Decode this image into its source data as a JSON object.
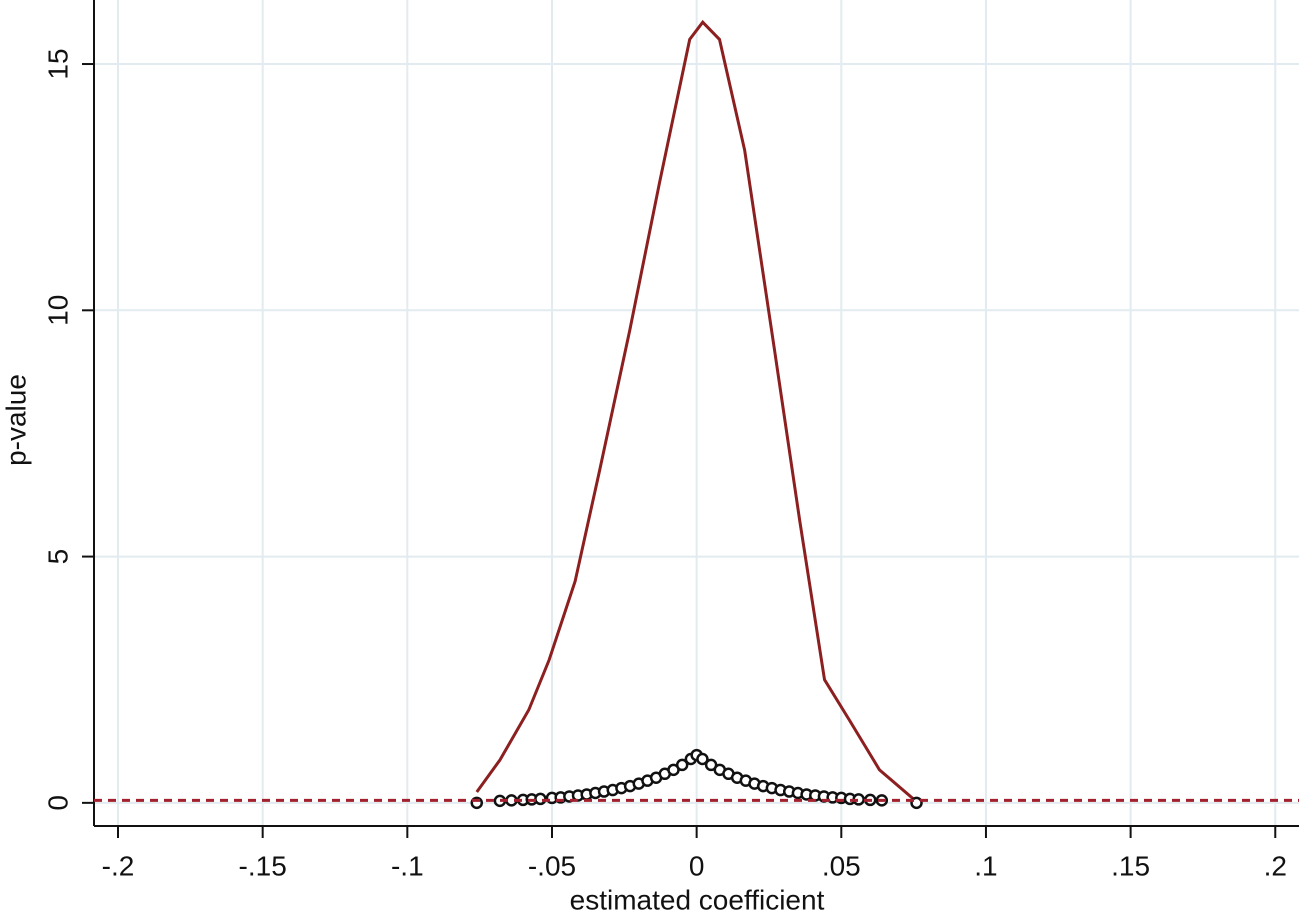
{
  "chart_data": {
    "type": "line",
    "x_label": "estimated  coefficient",
    "y_label": "p-value",
    "xlim": [
      -0.2083,
      0.2082
    ],
    "ylim": [
      -0.47,
      16.3
    ],
    "xticks": [
      {
        "value": -0.2,
        "label": "-.2"
      },
      {
        "value": -0.15,
        "label": "-.15"
      },
      {
        "value": -0.1,
        "label": "-.1"
      },
      {
        "value": -0.05,
        "label": "-.05"
      },
      0,
      {
        "value": 0.05,
        "label": ".05"
      },
      {
        "value": 0.1,
        "label": ".1"
      },
      {
        "value": 0.15,
        "label": ".15"
      },
      {
        "value": 0.2,
        "label": ".2"
      }
    ],
    "yticks": [
      0,
      5,
      10,
      15
    ],
    "grid": true,
    "reference_line": {
      "value": 0.05,
      "color": "#a3212e"
    },
    "series": [
      {
        "type": "line",
        "color": "#8c1f1f",
        "x": [
          -0.076,
          -0.068,
          -0.058,
          -0.051,
          -0.042,
          -0.0335,
          -0.0231,
          -0.0128,
          -0.0024,
          0.0021,
          0.0079,
          0.0166,
          0.0269,
          0.0356,
          0.0442,
          0.0528,
          0.0632,
          0.0753
        ],
        "values": [
          0.22,
          0.87,
          1.89,
          2.9,
          4.5,
          6.76,
          9.6,
          12.6,
          15.5,
          15.85,
          15.5,
          13.25,
          9.2,
          5.74,
          2.5,
          1.68,
          0.67,
          0.06
        ]
      },
      {
        "type": "scatter",
        "color": "#111111",
        "x": [
          -0.076,
          -0.068,
          -0.064,
          -0.06,
          -0.057,
          -0.054,
          -0.05,
          -0.047,
          -0.044,
          -0.041,
          -0.038,
          -0.035,
          -0.032,
          -0.029,
          -0.026,
          -0.023,
          -0.02,
          -0.017,
          -0.014,
          -0.011,
          -0.008,
          -0.005,
          -0.002,
          0,
          0.002,
          0.005,
          0.008,
          0.011,
          0.014,
          0.017,
          0.02,
          0.023,
          0.026,
          0.029,
          0.032,
          0.035,
          0.038,
          0.041,
          0.044,
          0.047,
          0.05,
          0.053,
          0.056,
          0.06,
          0.064,
          0.076
        ],
        "values": [
          0,
          0.04,
          0.05,
          0.06,
          0.07,
          0.08,
          0.1,
          0.11,
          0.13,
          0.15,
          0.17,
          0.2,
          0.23,
          0.26,
          0.3,
          0.34,
          0.39,
          0.45,
          0.51,
          0.59,
          0.67,
          0.77,
          0.89,
          0.97,
          0.89,
          0.77,
          0.67,
          0.59,
          0.51,
          0.45,
          0.39,
          0.34,
          0.3,
          0.26,
          0.23,
          0.2,
          0.17,
          0.15,
          0.13,
          0.11,
          0.1,
          0.08,
          0.07,
          0.06,
          0.05,
          0
        ]
      }
    ]
  }
}
